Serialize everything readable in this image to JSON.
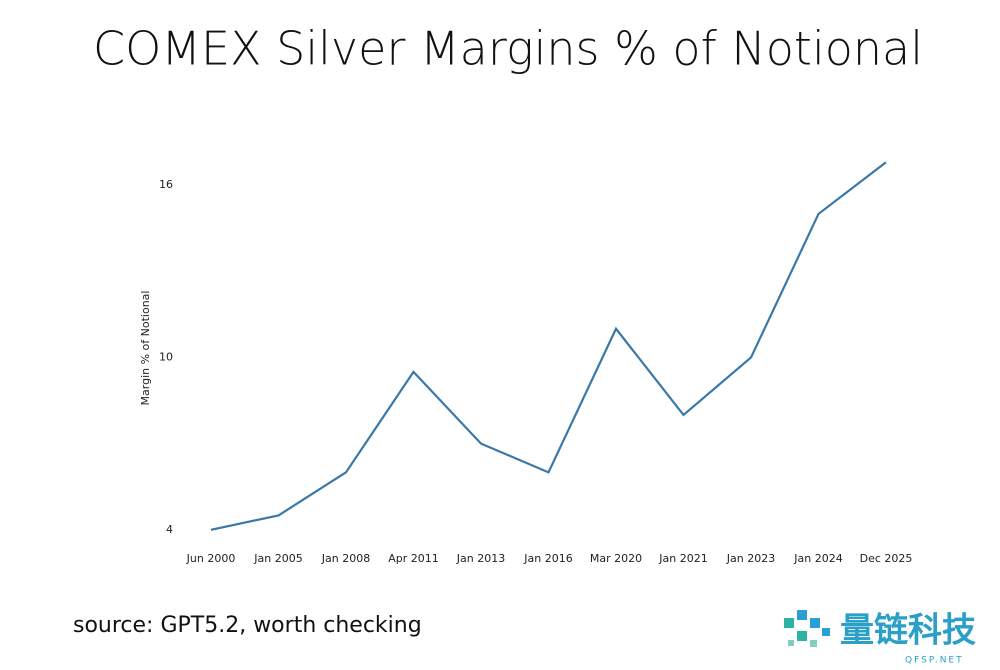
{
  "chart_data": {
    "type": "line",
    "title": "COMEX Silver Margins % of Notional",
    "y_label": "Margin % of Notional",
    "categories": [
      "Jun 2000",
      "Jan 2005",
      "Jan 2008",
      "Apr 2011",
      "Jan 2013",
      "Jan 2016",
      "Mar 2020",
      "Jan 2021",
      "Jan 2023",
      "Jan 2024",
      "Dec 2025"
    ],
    "values": [
      4,
      4.5,
      6,
      9.5,
      7,
      6,
      11,
      8,
      10,
      15,
      16.8
    ],
    "color": "#3a78a8",
    "ylim": [
      3.4,
      17.4
    ],
    "yticks": [
      4,
      10,
      16
    ],
    "grid": false
  },
  "footer": {
    "source": "source: GPT5.2, worth checking",
    "watermark": "量链科技",
    "watermark_url": "QFSP.NET"
  }
}
